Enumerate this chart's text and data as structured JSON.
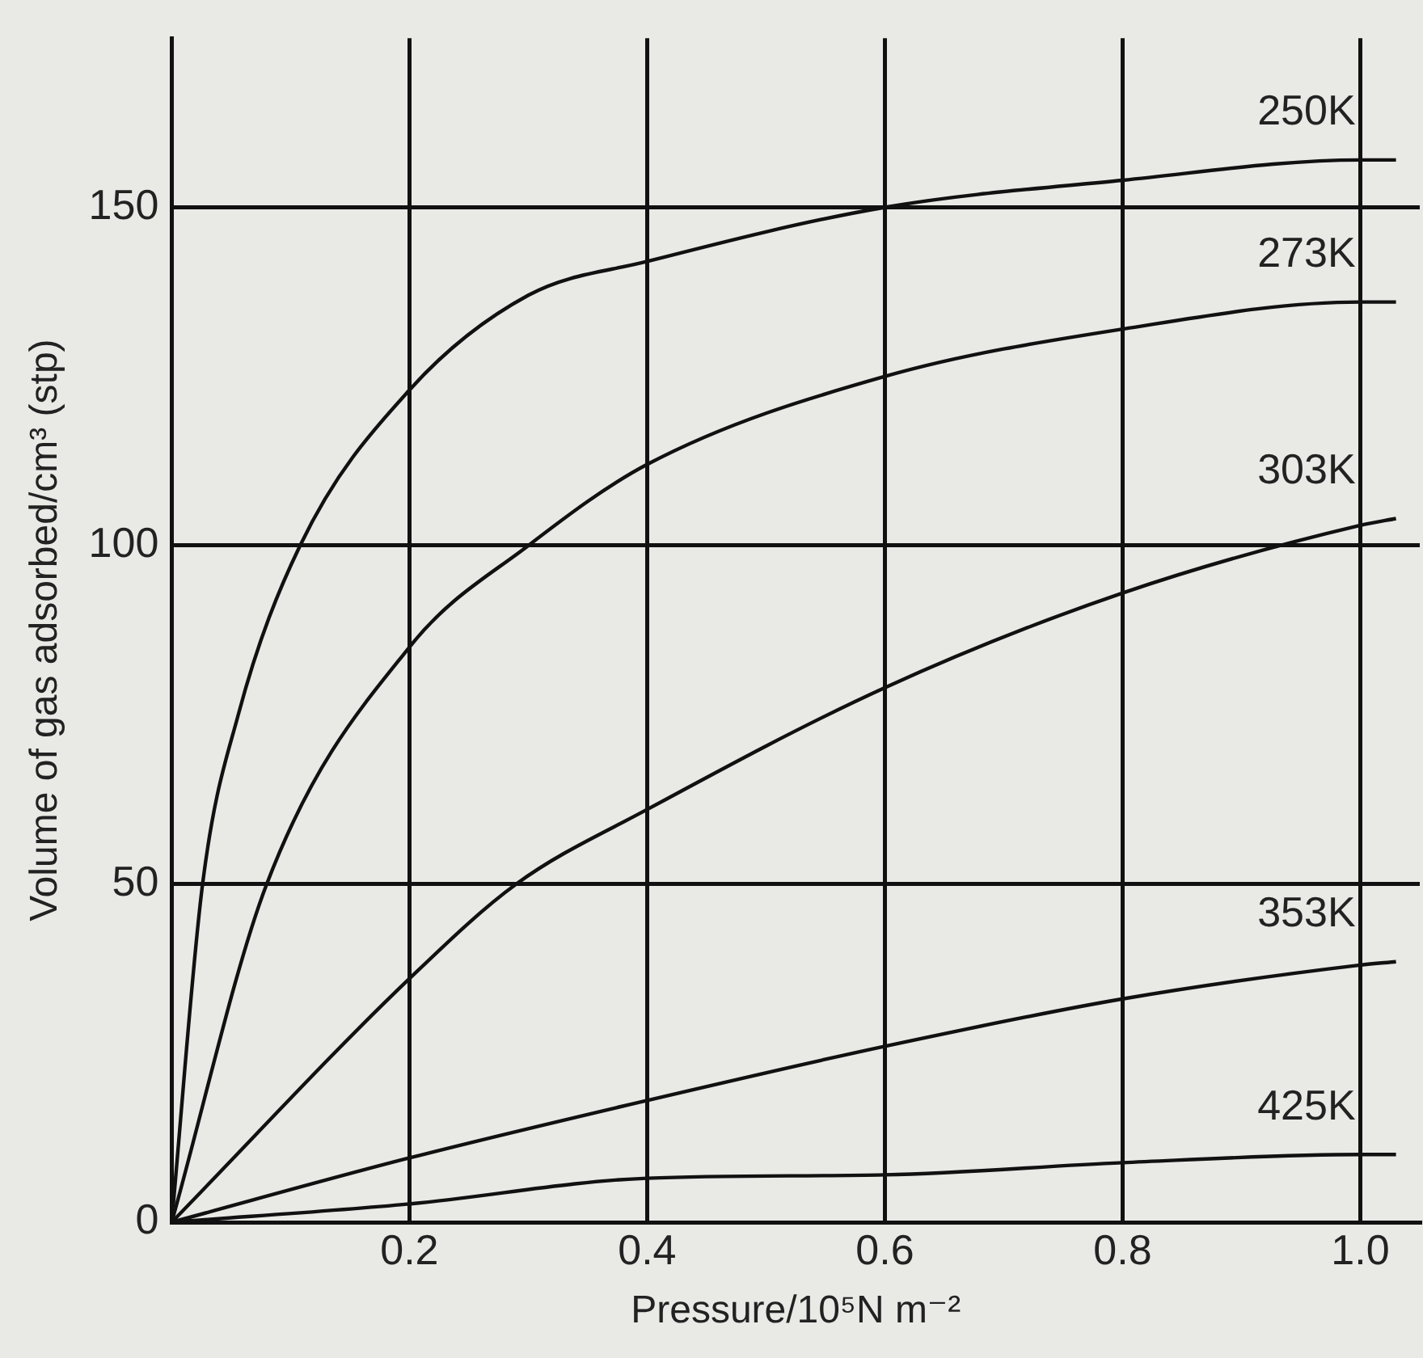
{
  "chart_data": {
    "type": "line",
    "xlabel": "Pressure/10⁵N m⁻²",
    "ylabel": "Volume of gas adsorbed/cm³ (stp)",
    "xlim": [
      0,
      1.05
    ],
    "ylim": [
      0,
      175
    ],
    "xticks": [
      {
        "value": 0,
        "label": null
      },
      0.2,
      0.4,
      0.6,
      0.8,
      {
        "value": 1.0,
        "label": "1.0"
      }
    ],
    "yticks": [
      0,
      50,
      100,
      150
    ],
    "grid": true,
    "legend": false,
    "marker": "none",
    "line_style": "solid",
    "series": [
      {
        "name": "250K",
        "color": "#111111",
        "x": [
          0,
          0.026,
          0.056,
          0.108,
          0.2,
          0.3,
          0.4,
          0.6,
          0.8,
          1.0,
          1.03
        ],
        "values": [
          0,
          50,
          75,
          100,
          123,
          137,
          142,
          150,
          154,
          157,
          157
        ]
      },
      {
        "name": "273K",
        "color": "#111111",
        "x": [
          0,
          0.08,
          0.2,
          0.3,
          0.4,
          0.6,
          0.8,
          1.0,
          1.03
        ],
        "values": [
          0,
          50,
          85,
          100,
          112,
          125,
          132,
          136,
          136
        ]
      },
      {
        "name": "303K",
        "color": "#111111",
        "x": [
          0,
          0.2,
          0.29,
          0.4,
          0.6,
          0.8,
          1.0,
          1.03
        ],
        "values": [
          0,
          36,
          50,
          61,
          79,
          93,
          103,
          104
        ]
      },
      {
        "name": "353K",
        "color": "#111111",
        "x": [
          0,
          0.2,
          0.4,
          0.6,
          0.8,
          1.0,
          1.03
        ],
        "values": [
          0,
          9.5,
          18,
          26,
          33,
          38,
          38.5
        ]
      },
      {
        "name": "425K",
        "color": "#111111",
        "x": [
          0,
          0.2,
          0.4,
          0.6,
          0.8,
          1.0,
          1.03
        ],
        "values": [
          0,
          2.7,
          6.5,
          7,
          8.8,
          10,
          10
        ]
      }
    ]
  }
}
